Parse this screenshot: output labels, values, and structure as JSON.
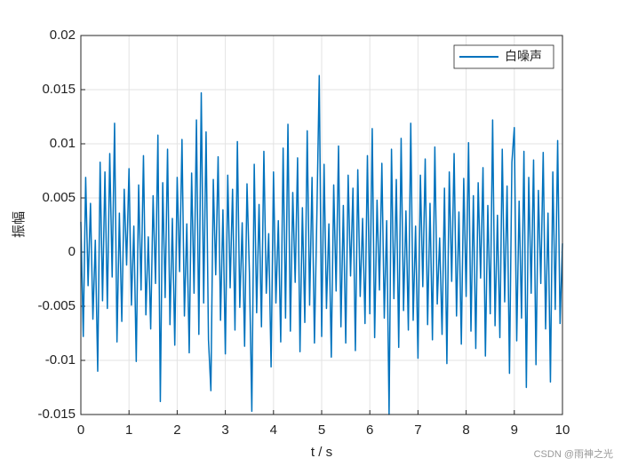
{
  "chart_data": {
    "type": "line",
    "xlabel": "t / s",
    "ylabel": "振幅",
    "x": [
      0,
      0.05,
      0.1,
      0.15,
      0.2,
      0.25,
      0.3,
      0.35,
      0.4,
      0.45,
      0.5,
      0.55,
      0.6,
      0.65,
      0.7,
      0.75,
      0.8,
      0.85,
      0.9,
      0.95,
      1,
      1.05,
      1.1,
      1.15,
      1.2,
      1.25,
      1.3,
      1.35,
      1.4,
      1.45,
      1.5,
      1.55,
      1.6,
      1.65,
      1.7,
      1.75,
      1.8,
      1.85,
      1.9,
      1.95,
      2,
      2.05,
      2.1,
      2.15,
      2.2,
      2.25,
      2.3,
      2.35,
      2.4,
      2.45,
      2.5,
      2.55,
      2.6,
      2.65,
      2.7,
      2.75,
      2.8,
      2.85,
      2.9,
      2.95,
      3,
      3.05,
      3.1,
      3.15,
      3.2,
      3.25,
      3.3,
      3.35,
      3.4,
      3.45,
      3.5,
      3.55,
      3.6,
      3.65,
      3.7,
      3.75,
      3.8,
      3.85,
      3.9,
      3.95,
      4,
      4.05,
      4.1,
      4.15,
      4.2,
      4.25,
      4.3,
      4.35,
      4.4,
      4.45,
      4.5,
      4.55,
      4.6,
      4.65,
      4.7,
      4.75,
      4.8,
      4.85,
      4.9,
      4.95,
      5,
      5.05,
      5.1,
      5.15,
      5.2,
      5.25,
      5.3,
      5.35,
      5.4,
      5.45,
      5.5,
      5.55,
      5.6,
      5.65,
      5.7,
      5.75,
      5.8,
      5.85,
      5.9,
      5.95,
      6,
      6.05,
      6.1,
      6.15,
      6.2,
      6.25,
      6.3,
      6.35,
      6.4,
      6.45,
      6.5,
      6.55,
      6.6,
      6.65,
      6.7,
      6.75,
      6.8,
      6.85,
      6.9,
      6.95,
      7,
      7.05,
      7.1,
      7.15,
      7.2,
      7.25,
      7.3,
      7.35,
      7.4,
      7.45,
      7.5,
      7.55,
      7.6,
      7.65,
      7.7,
      7.75,
      7.8,
      7.85,
      7.9,
      7.95,
      8,
      8.05,
      8.1,
      8.15,
      8.2,
      8.25,
      8.3,
      8.35,
      8.4,
      8.45,
      8.5,
      8.55,
      8.6,
      8.65,
      8.7,
      8.75,
      8.8,
      8.85,
      8.9,
      8.95,
      9,
      9.05,
      9.1,
      9.15,
      9.2,
      9.25,
      9.3,
      9.35,
      9.4,
      9.45,
      9.5,
      9.55,
      9.6,
      9.65,
      9.7,
      9.75,
      9.8,
      9.85,
      9.9,
      9.95,
      10
    ],
    "series": [
      {
        "name": "白噪声",
        "color": "#0072bd",
        "values": [
          0.0028,
          -0.0078,
          0.0069,
          -0.0031,
          0.0045,
          -0.0062,
          0.0011,
          -0.011,
          0.0083,
          -0.0045,
          0.0074,
          -0.0052,
          0.0091,
          -0.0023,
          0.0119,
          -0.0083,
          0.0036,
          -0.0064,
          0.0058,
          -0.0012,
          0.0077,
          -0.0049,
          0.0024,
          -0.0101,
          0.0062,
          -0.0035,
          0.0089,
          -0.0058,
          0.0014,
          -0.0071,
          0.0052,
          -0.0029,
          0.0108,
          -0.0138,
          0.0064,
          -0.0042,
          0.0095,
          -0.0067,
          0.0031,
          -0.0086,
          0.0069,
          -0.0018,
          0.0104,
          -0.0059,
          0.0026,
          -0.0093,
          0.0073,
          -0.0038,
          0.0122,
          -0.0076,
          0.0147,
          -0.0047,
          0.0111,
          -0.0081,
          -0.0128,
          0.0067,
          -0.0021,
          0.0088,
          -0.0063,
          0.0039,
          -0.0094,
          0.0071,
          -0.0033,
          0.0058,
          -0.0072,
          0.0102,
          -0.0051,
          0.0027,
          -0.0087,
          0.0063,
          -0.0019,
          -0.0147,
          0.0081,
          -0.0056,
          0.0044,
          -0.0069,
          0.0093,
          -0.0038,
          0.0017,
          -0.0106,
          0.0074,
          -0.0047,
          0.0029,
          -0.0083,
          0.0096,
          -0.0061,
          0.0118,
          -0.0073,
          0.0055,
          -0.0028,
          0.0087,
          -0.0092,
          0.0041,
          -0.0065,
          0.0112,
          -0.0049,
          0.0069,
          -0.0084,
          0.0033,
          0.0163,
          -0.0078,
          0.0081,
          -0.0052,
          0.0026,
          -0.0097,
          0.0062,
          -0.0036,
          0.0098,
          -0.0069,
          0.0043,
          -0.0084,
          0.0071,
          -0.0022,
          0.0059,
          -0.0091,
          0.0076,
          -0.0041,
          0.0031,
          -0.0066,
          0.0089,
          -0.0057,
          0.0114,
          -0.0079,
          0.0048,
          -0.0035,
          0.0082,
          -0.0061,
          0.0029,
          -0.015,
          0.0095,
          -0.0043,
          0.0067,
          -0.0088,
          0.0105,
          -0.0054,
          0.0038,
          -0.0072,
          0.0119,
          -0.0063,
          0.0024,
          -0.0098,
          0.0071,
          -0.0032,
          0.0086,
          -0.0067,
          0.0045,
          -0.0081,
          0.0097,
          -0.0048,
          0.0013,
          -0.0076,
          0.0059,
          -0.0103,
          0.0074,
          -0.0027,
          0.0091,
          -0.0059,
          0.0037,
          -0.0085,
          0.0068,
          -0.0041,
          0.0101,
          -0.0073,
          0.0052,
          -0.0089,
          0.0064,
          -0.0024,
          0.0078,
          -0.0096,
          0.0043,
          -0.0057,
          0.0122,
          -0.0068,
          0.0034,
          -0.0079,
          0.0095,
          -0.0046,
          0.0061,
          -0.0112,
          0.0083,
          0.0115,
          -0.0082,
          0.0047,
          -0.0061,
          0.0093,
          -0.0125,
          0.0069,
          -0.0038,
          0.0085,
          -0.0104,
          0.0057,
          -0.0029,
          0.0092,
          -0.0071,
          0.0036,
          -0.012,
          0.0074,
          -0.0053,
          0.0103,
          -0.0066,
          0.0008
        ]
      }
    ],
    "xlim": [
      0,
      10
    ],
    "xticks": [
      0,
      1,
      2,
      3,
      4,
      5,
      6,
      7,
      8,
      9,
      10
    ],
    "ylim": [
      -0.015,
      0.02
    ],
    "yticks": [
      -0.015,
      -0.01,
      -0.005,
      0,
      0.005,
      0.01,
      0.015,
      0.02
    ],
    "grid": true,
    "legend": "northeast",
    "watermark": "CSDN @雨神之光"
  }
}
